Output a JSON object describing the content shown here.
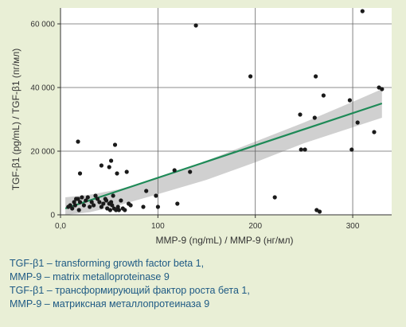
{
  "chart_data": {
    "type": "scatter",
    "xlabel": "MMP-9 (ng/mL) / MMP-9 (нг/мл)",
    "ylabel": "TGF-β1 (pg/mL) / TGF-β1 (пг/мл)",
    "xlim": [
      0,
      340
    ],
    "ylim": [
      0,
      65000
    ],
    "grid": true,
    "x_ticks": [
      0,
      100,
      200,
      300
    ],
    "x_tick_labels": [
      "0,0",
      "100",
      "200",
      "300"
    ],
    "y_ticks": [
      0,
      20000,
      40000,
      60000
    ],
    "y_tick_labels": [
      "0",
      "20 000",
      "40 000",
      "60 000"
    ],
    "colors": {
      "background": "#e9efd6",
      "plot_background": "#ffffff",
      "points": "#1a1a1a",
      "regression_line": "#1e8a57",
      "confidence_band": "#c8c8c8",
      "grid": "#666666",
      "legend_text": "#1e5a84"
    },
    "regression": {
      "x": [
        5,
        330
      ],
      "y": [
        2000,
        35000
      ]
    },
    "confidence_band": {
      "x": [
        5,
        30,
        60,
        100,
        150,
        200,
        250,
        300,
        330
      ],
      "upper": [
        5500,
        6300,
        8000,
        11500,
        17000,
        23000,
        29000,
        35500,
        39500
      ],
      "lower": [
        -1500,
        800,
        3000,
        6500,
        11000,
        16500,
        22500,
        27500,
        30500
      ]
    },
    "points": [
      {
        "x": 8,
        "y": 2500
      },
      {
        "x": 10,
        "y": 3000
      },
      {
        "x": 12,
        "y": 2000
      },
      {
        "x": 14,
        "y": 4000
      },
      {
        "x": 15,
        "y": 3000
      },
      {
        "x": 16,
        "y": 5000
      },
      {
        "x": 18,
        "y": 23000
      },
      {
        "x": 18,
        "y": 5000
      },
      {
        "x": 19,
        "y": 1500
      },
      {
        "x": 20,
        "y": 13000
      },
      {
        "x": 20,
        "y": 4000
      },
      {
        "x": 22,
        "y": 5500
      },
      {
        "x": 24,
        "y": 3000
      },
      {
        "x": 26,
        "y": 4500
      },
      {
        "x": 28,
        "y": 5500
      },
      {
        "x": 30,
        "y": 2500
      },
      {
        "x": 32,
        "y": 4000
      },
      {
        "x": 34,
        "y": 3000
      },
      {
        "x": 36,
        "y": 6000
      },
      {
        "x": 38,
        "y": 5000
      },
      {
        "x": 40,
        "y": 4000
      },
      {
        "x": 42,
        "y": 15500
      },
      {
        "x": 42,
        "y": 2500
      },
      {
        "x": 44,
        "y": 3500
      },
      {
        "x": 46,
        "y": 5000
      },
      {
        "x": 47,
        "y": 4500
      },
      {
        "x": 48,
        "y": 2000
      },
      {
        "x": 50,
        "y": 15000
      },
      {
        "x": 50,
        "y": 3500
      },
      {
        "x": 51,
        "y": 1500
      },
      {
        "x": 52,
        "y": 17000
      },
      {
        "x": 52,
        "y": 4000
      },
      {
        "x": 53,
        "y": 3000
      },
      {
        "x": 54,
        "y": 6000
      },
      {
        "x": 55,
        "y": 2000
      },
      {
        "x": 56,
        "y": 22000
      },
      {
        "x": 57,
        "y": 1500
      },
      {
        "x": 58,
        "y": 13000
      },
      {
        "x": 59,
        "y": 2500
      },
      {
        "x": 60,
        "y": 1500
      },
      {
        "x": 62,
        "y": 4500
      },
      {
        "x": 64,
        "y": 2000
      },
      {
        "x": 66,
        "y": 1500
      },
      {
        "x": 68,
        "y": 13500
      },
      {
        "x": 70,
        "y": 3500
      },
      {
        "x": 72,
        "y": 3000
      },
      {
        "x": 85,
        "y": 2500
      },
      {
        "x": 88,
        "y": 7500
      },
      {
        "x": 98,
        "y": 6000
      },
      {
        "x": 100,
        "y": 2500
      },
      {
        "x": 117,
        "y": 14000
      },
      {
        "x": 120,
        "y": 3500
      },
      {
        "x": 133,
        "y": 13500
      },
      {
        "x": 139,
        "y": 59500
      },
      {
        "x": 195,
        "y": 43500
      },
      {
        "x": 220,
        "y": 5500
      },
      {
        "x": 246,
        "y": 31500
      },
      {
        "x": 247,
        "y": 20500
      },
      {
        "x": 251,
        "y": 20500
      },
      {
        "x": 261,
        "y": 30500
      },
      {
        "x": 262,
        "y": 43500
      },
      {
        "x": 263,
        "y": 1500
      },
      {
        "x": 266,
        "y": 1000
      },
      {
        "x": 270,
        "y": 37500
      },
      {
        "x": 297,
        "y": 36000
      },
      {
        "x": 299,
        "y": 20500
      },
      {
        "x": 305,
        "y": 29000
      },
      {
        "x": 310,
        "y": 64000
      },
      {
        "x": 322,
        "y": 26000
      },
      {
        "x": 327,
        "y": 40000
      },
      {
        "x": 330,
        "y": 39500
      }
    ]
  },
  "legend_lines": [
    "TGF-β1 – transforming growth factor beta 1,",
    "MMP-9 – matrix metalloproteinase 9",
    "TGF-β1 – трансформирующий фактор роста бета 1,",
    "MMP-9 – матриксная металлопротеиназа 9"
  ]
}
